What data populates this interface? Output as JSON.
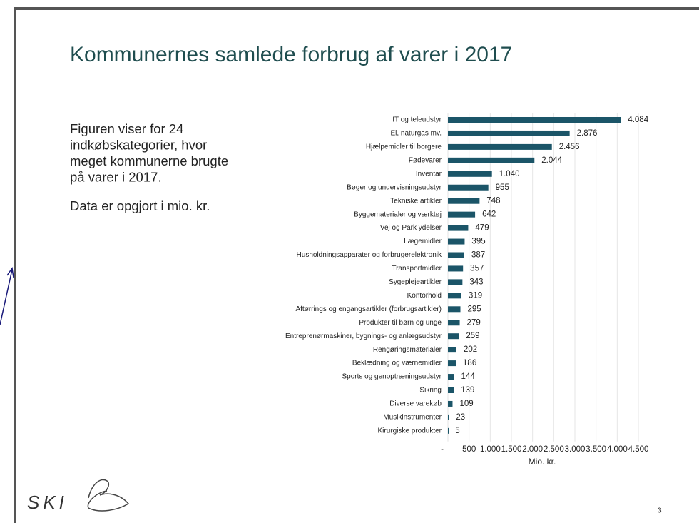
{
  "slide": {
    "title": "Kommunernes samlede forbrug af varer i 2017",
    "intro_lines": [
      "Figuren viser for 24",
      "indkøbskategorier, hvor",
      "meget kommunerne brugte",
      "på varer i 2017."
    ],
    "note": "Data er opgjort i mio. kr.",
    "logo": "SKI",
    "page_number": "3"
  },
  "chart_data": {
    "type": "barh",
    "categories": [
      "IT og teleudstyr",
      "El, naturgas mv.",
      "Hjælpemidler til borgere",
      "Fødevarer",
      "Inventar",
      "Bøger og undervisningsudstyr",
      "Tekniske artikler",
      "Byggematerialer og værktøj",
      "Vej og Park ydelser",
      "Lægemidler",
      "Husholdningsapparater og forbrugerelektronik",
      "Transportmidler",
      "Sygeplejeartikler",
      "Kontorhold",
      "Aftørrings og engangsartikler (forbrugsartikler)",
      "Produkter til børn og unge",
      "Entreprenørmaskiner, bygnings- og anlægsudstyr",
      "Rengøringsmaterialer",
      "Beklædning og værnemidler",
      "Sports og genoptræningsudstyr",
      "Sikring",
      "Diverse varekøb",
      "Musikinstrumenter",
      "Kirurgiske produkter"
    ],
    "values": [
      4084,
      2876,
      2456,
      2044,
      1040,
      955,
      748,
      642,
      479,
      395,
      387,
      357,
      343,
      319,
      295,
      279,
      259,
      202,
      186,
      144,
      139,
      109,
      23,
      5
    ],
    "value_labels": [
      "4.084",
      "2.876",
      "2.456",
      "2.044",
      "1.040",
      "955",
      "748",
      "642",
      "479",
      "395",
      "387",
      "357",
      "343",
      "319",
      "295",
      "279",
      "259",
      "202",
      "186",
      "144",
      "139",
      "109",
      "23",
      "5"
    ],
    "color": "#1b5568",
    "xlim": [
      0,
      4500
    ],
    "xticks": [
      {
        "value": 0,
        "label": "-"
      },
      500,
      {
        "value": 1000,
        "label": "1.000"
      },
      {
        "value": 1500,
        "label": "1.500"
      },
      {
        "value": 2000,
        "label": "2.000"
      },
      {
        "value": 2500,
        "label": "2.500"
      },
      {
        "value": 3000,
        "label": "3.000"
      },
      {
        "value": 3500,
        "label": "3.500"
      },
      {
        "value": 4000,
        "label": "4.000"
      },
      {
        "value": 4500,
        "label": "4.500"
      }
    ],
    "xlabel": "Mio. kr.",
    "grid": true
  }
}
